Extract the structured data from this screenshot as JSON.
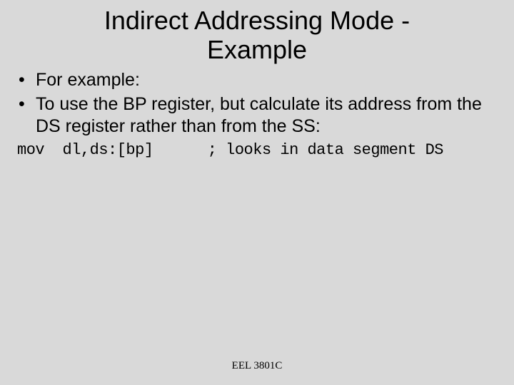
{
  "background_color": "#d9d9d9",
  "text_color": "#000000",
  "title": {
    "line1": "Indirect Addressing Mode -",
    "line2": "Example",
    "fontsize": 36
  },
  "bullets": [
    "For example:",
    "To use the BP register, but calculate its address from the DS register rather than from the SS:"
  ],
  "code": {
    "text": "mov  dl,ds:[bp]      ; looks in data segment DS",
    "font_family": "Courier New",
    "fontsize": 22
  },
  "footer": {
    "text": "EEL 3801C",
    "fontsize": 15
  }
}
